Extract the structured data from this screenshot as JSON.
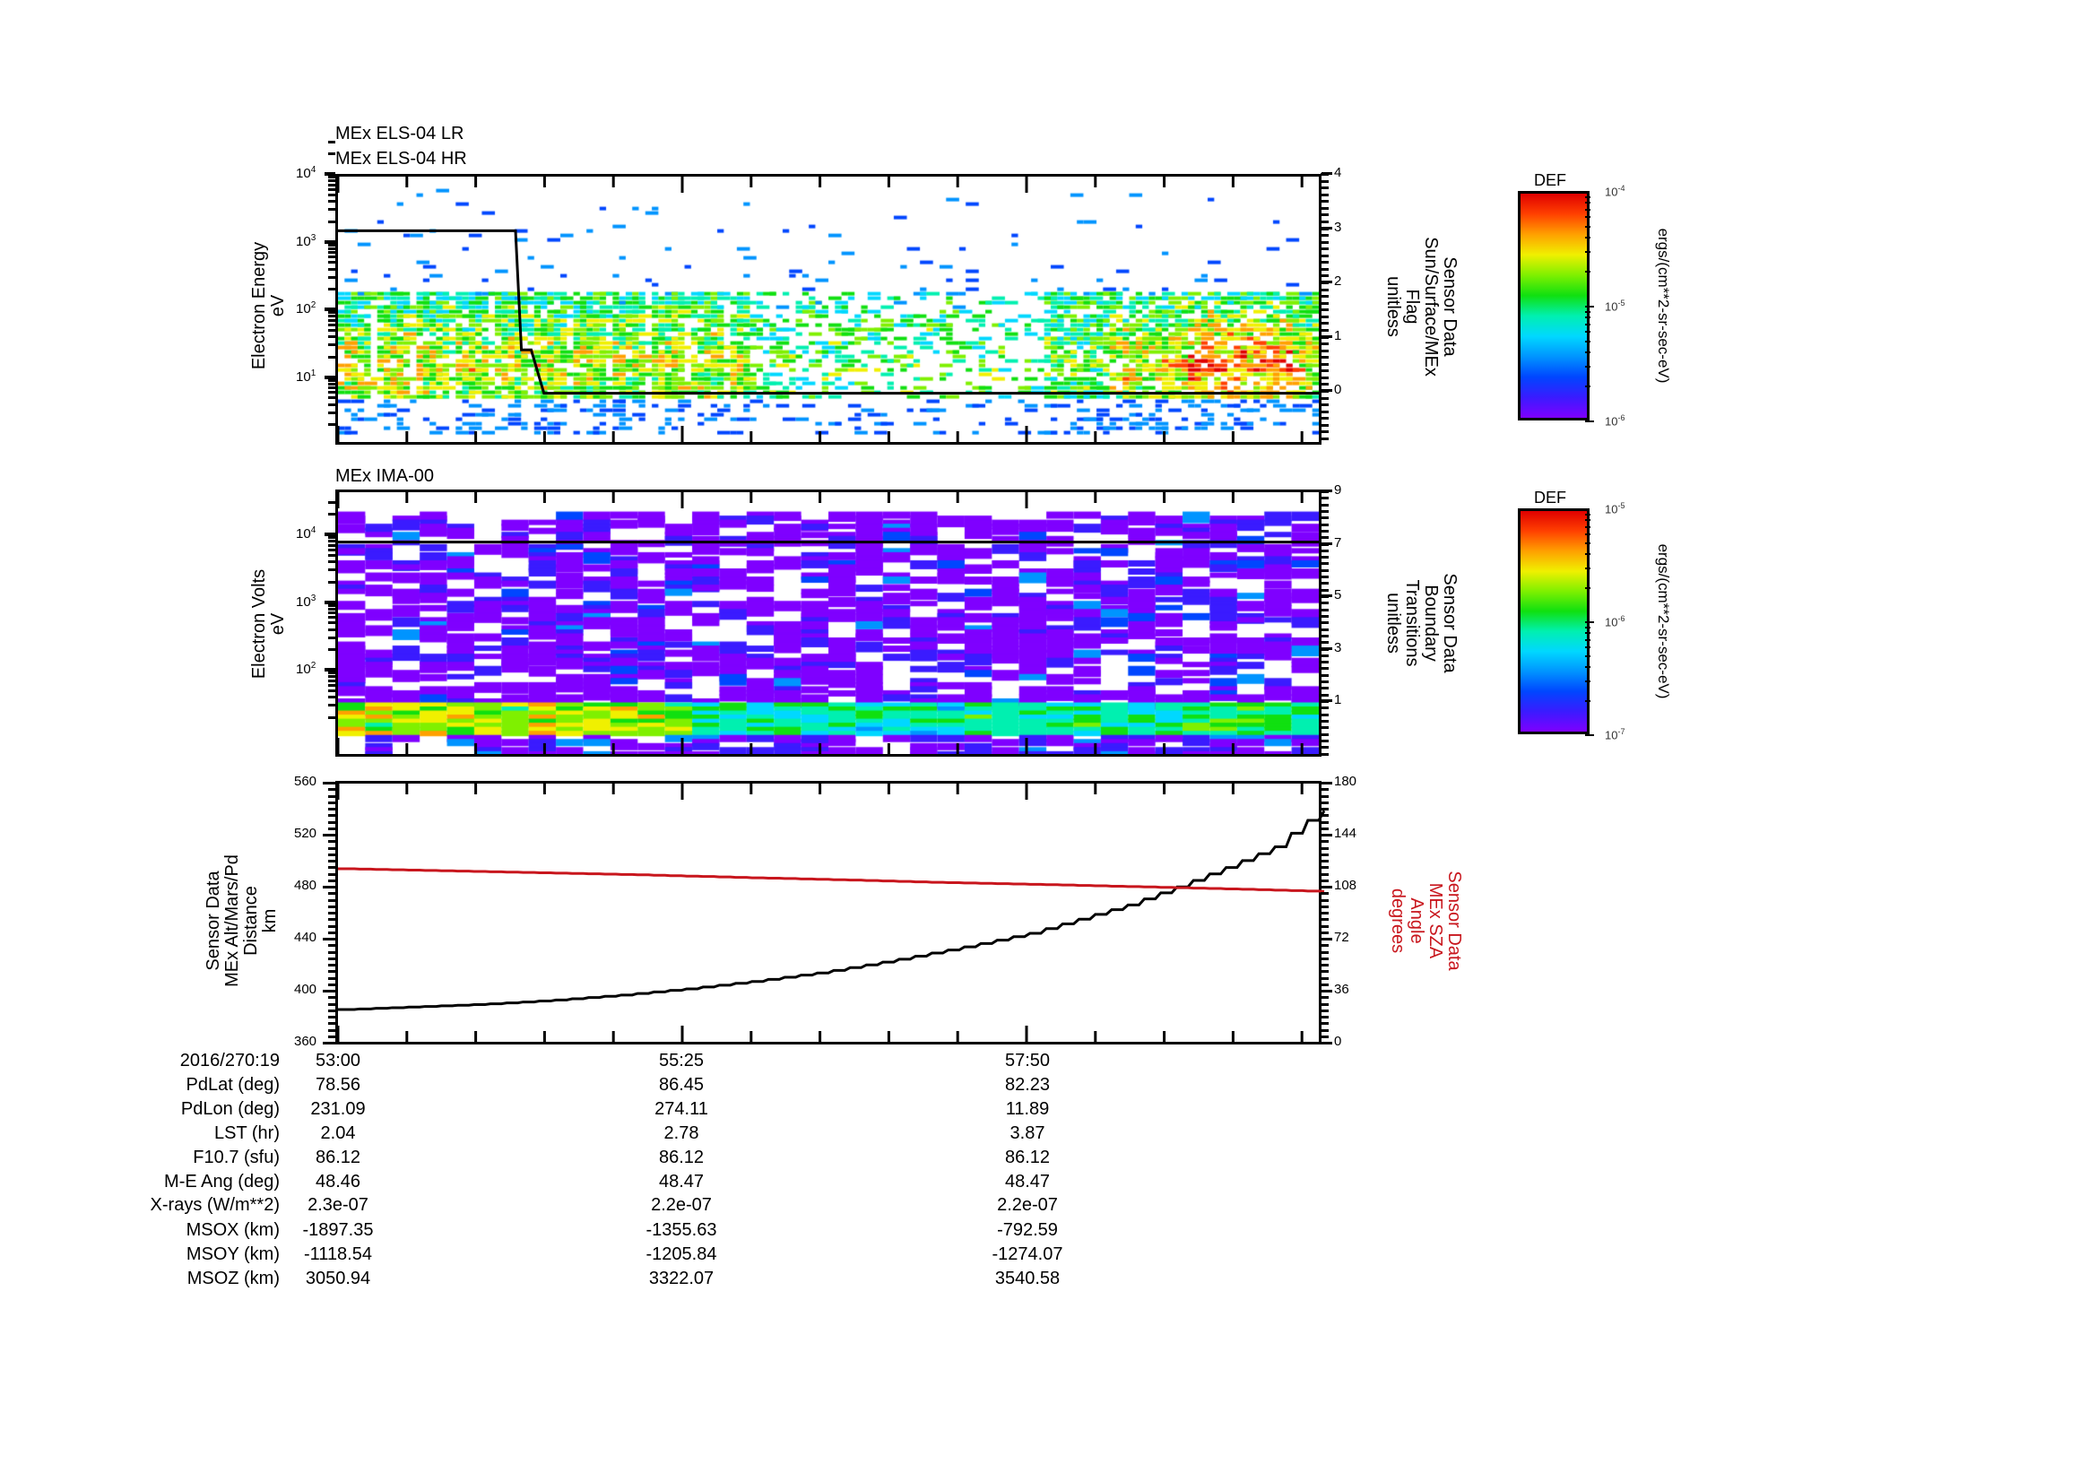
{
  "chart_data": [
    {
      "type": "heatmap",
      "panel": "top",
      "title_lines": [
        "MEx ELS-04 LR",
        "MEx ELS-04 HR"
      ],
      "ylabel": [
        "Electron Energy",
        "eV"
      ],
      "yscale": "log",
      "ylim": [
        1,
        10000
      ],
      "yticks": [
        "10^1",
        "10^2",
        "10^3",
        "10^4"
      ],
      "right_axis": {
        "label": [
          "Sensor Data",
          "Sun/Surface/MEx",
          "Flag",
          "unitless"
        ],
        "ylim": [
          -0.9,
          4
        ],
        "yticks": [
          0,
          1,
          2,
          3,
          4
        ]
      },
      "overlay_line": {
        "name": "Sun/Surface/MEx Flag",
        "color": "#000000",
        "points": [
          [
            0,
            3
          ],
          [
            0.181,
            3
          ],
          [
            0.187,
            0.8
          ],
          [
            0.197,
            0.8
          ],
          [
            0.21,
            0
          ],
          [
            1.0,
            0
          ]
        ]
      },
      "colorbar": {
        "title": "DEF",
        "max": "10^-4",
        "mid": "10^-5",
        "min": "10^-6",
        "unit": "ergs/(cm**2-sr-sec-eV)"
      },
      "description": "Sparse electron spectrogram; dense green/cyan band 5-150 eV in first ~40% and last ~25% of interval, with yellow/red peaks (~10 eV) near the end; scattered blue pixels up to ~5 keV."
    },
    {
      "type": "heatmap",
      "panel": "middle",
      "title": "MEx IMA-00",
      "ylabel": [
        "Electron Volts",
        "eV"
      ],
      "yscale": "log",
      "ylim": [
        5,
        35000
      ],
      "yticks": [
        "10^2",
        "10^3",
        "10^4"
      ],
      "right_axis": {
        "label": [
          "Sensor Data",
          "Boundary",
          "Transitions",
          "unitless"
        ],
        "ylim": [
          -1.5,
          9
        ],
        "yticks": [
          1,
          3,
          5,
          7,
          9
        ]
      },
      "overlay_line": {
        "name": "Boundary Transitions",
        "color": "#000000",
        "points": [
          [
            0,
            7
          ],
          [
            1.0,
            7
          ]
        ]
      },
      "colorbar": {
        "title": "DEF",
        "max": "10^-5",
        "mid": "10^-6",
        "min": "10^-7",
        "unit": "ergs/(cm**2-sr-sec-eV)"
      },
      "description": "Ion spectrogram dominated by purple/blue low-level pixels from ~10 eV to ~20 keV; bright green/yellow/orange band near 10-30 eV in first third of interval, cyan/green later."
    },
    {
      "type": "line",
      "panel": "bottom",
      "xlabel": "",
      "x_ticks": [
        "53:00",
        "55:25",
        "57:50"
      ],
      "x_range_seconds": [
        0,
        418
      ],
      "left_axis": {
        "label": [
          "Sensor Data",
          "MEx Alt/Mars/Pd",
          "Distance",
          "km"
        ],
        "ylim": [
          360,
          560
        ],
        "yticks": [
          360,
          400,
          440,
          480,
          520,
          560
        ]
      },
      "right_axis": {
        "label": [
          "Sensor Data",
          "MEx SZA",
          "Angle",
          "degrees"
        ],
        "ylim": [
          0,
          180
        ],
        "yticks": [
          0,
          36,
          72,
          108,
          144,
          180
        ],
        "color": "#c8161d"
      },
      "series": [
        {
          "name": "MEx Alt/Mars/Pd Distance (km)",
          "axis": "left",
          "color": "#000000",
          "x_frac": [
            0,
            0.07,
            0.14,
            0.21,
            0.28,
            0.35,
            0.42,
            0.49,
            0.56,
            0.63,
            0.7,
            0.75,
            0.8,
            0.85,
            0.9,
            0.95,
            0.98,
            1.0
          ],
          "values": [
            385,
            387,
            389,
            392,
            396,
            401,
            407,
            414,
            423,
            433,
            444,
            455,
            466,
            480,
            495,
            511,
            530,
            539
          ]
        },
        {
          "name": "MEx SZA Angle (degrees)",
          "axis": "right",
          "color": "#c8161d",
          "x_frac": [
            0,
            0.1,
            0.2,
            0.3,
            0.4,
            0.5,
            0.6,
            0.7,
            0.8,
            0.9,
            1.0
          ],
          "values": [
            120.6,
            119.2,
            117.8,
            116.4,
            114.6,
            113.0,
            111.2,
            109.8,
            108.2,
            106.6,
            104.8
          ]
        }
      ]
    }
  ],
  "time_axis": {
    "major_labels": [
      "53:00",
      "55:25",
      "57:50"
    ],
    "major_frac": [
      0,
      0.3509,
      0.7018
    ],
    "minor_step_frac": 0.0702
  },
  "info_table": {
    "rows": [
      {
        "label": "2016/270:19",
        "values": [
          "53:00",
          "55:25",
          "57:50"
        ]
      },
      {
        "label": "PdLat (deg)",
        "values": [
          "78.56",
          "86.45",
          "82.23"
        ]
      },
      {
        "label": "PdLon (deg)",
        "values": [
          "231.09",
          "274.11",
          "11.89"
        ]
      },
      {
        "label": "LST (hr)",
        "values": [
          "2.04",
          "2.78",
          "3.87"
        ]
      },
      {
        "label": "F10.7 (sfu)",
        "values": [
          "86.12",
          "86.12",
          "86.12"
        ]
      },
      {
        "label": "M-E Ang (deg)",
        "values": [
          "48.46",
          "48.47",
          "48.47"
        ]
      },
      {
        "label": "X-rays (W/m**2)",
        "values": [
          "2.3e-07",
          "2.2e-07",
          "2.2e-07"
        ]
      },
      {
        "label": "MSOX (km)",
        "values": [
          "-1897.35",
          "-1355.63",
          "-792.59"
        ]
      },
      {
        "label": "MSOY (km)",
        "values": [
          "-1118.54",
          "-1205.84",
          "-1274.07"
        ]
      },
      {
        "label": "MSOZ (km)",
        "values": [
          "3050.94",
          "3322.07",
          "3540.58"
        ]
      }
    ]
  },
  "labels": {
    "p1_title1": "MEx ELS-04 LR",
    "p1_title2": "MEx ELS-04 HR",
    "p1_ylabel1": "Electron Energy",
    "p1_ylabel2": "eV",
    "p1_rlabel1": "Sensor Data",
    "p1_rlabel2": "Sun/Surface/MEx",
    "p1_rlabel3": "Flag",
    "p1_rlabel4": "unitless",
    "p2_title": "MEx IMA-00",
    "p2_ylabel1": "Electron Volts",
    "p2_ylabel2": "eV",
    "p2_rlabel1": "Sensor Data",
    "p2_rlabel2": "Boundary",
    "p2_rlabel3": "Transitions",
    "p2_rlabel4": "unitless",
    "p3_llabel1": "Sensor Data",
    "p3_llabel2": "MEx Alt/Mars/Pd",
    "p3_llabel3": "Distance",
    "p3_llabel4": "km",
    "p3_rlabel1": "Sensor Data",
    "p3_rlabel2": "MEx SZA",
    "p3_rlabel3": "Angle",
    "p3_rlabel4": "degrees",
    "cb1_title": "DEF",
    "cb1_unit": "ergs/(cm**2-sr-sec-eV)",
    "cb2_title": "DEF",
    "cb2_unit": "ergs/(cm**2-sr-sec-eV)"
  },
  "ticks": {
    "p1_left": [
      {
        "b": "10",
        "e": "4"
      },
      {
        "b": "10",
        "e": "3"
      },
      {
        "b": "10",
        "e": "2"
      },
      {
        "b": "10",
        "e": "1"
      }
    ],
    "p1_right": [
      "4",
      "3",
      "2",
      "1",
      "0"
    ],
    "p2_left": [
      {
        "b": "10",
        "e": "4"
      },
      {
        "b": "10",
        "e": "3"
      },
      {
        "b": "10",
        "e": "2"
      }
    ],
    "p2_right": [
      "9",
      "7",
      "5",
      "3",
      "1"
    ],
    "p3_left": [
      "560",
      "520",
      "480",
      "440",
      "400",
      "360"
    ],
    "p3_right": [
      "180",
      "144",
      "108",
      "72",
      "36",
      "0"
    ],
    "cb1": [
      {
        "b": "10",
        "e": "-4"
      },
      {
        "b": "10",
        "e": "-5"
      },
      {
        "b": "10",
        "e": "-6"
      }
    ],
    "cb2": [
      {
        "b": "10",
        "e": "-5"
      },
      {
        "b": "10",
        "e": "-6"
      },
      {
        "b": "10",
        "e": "-7"
      }
    ]
  },
  "colors": {
    "axis": "#000000",
    "sza_red": "#c8161d",
    "colormap": [
      "#7f00ff",
      "#3a1bff",
      "#0046ff",
      "#0094ff",
      "#00d8ff",
      "#00f0b0",
      "#10e010",
      "#7ff000",
      "#f0f000",
      "#ffa000",
      "#ff4000",
      "#e00000"
    ]
  }
}
